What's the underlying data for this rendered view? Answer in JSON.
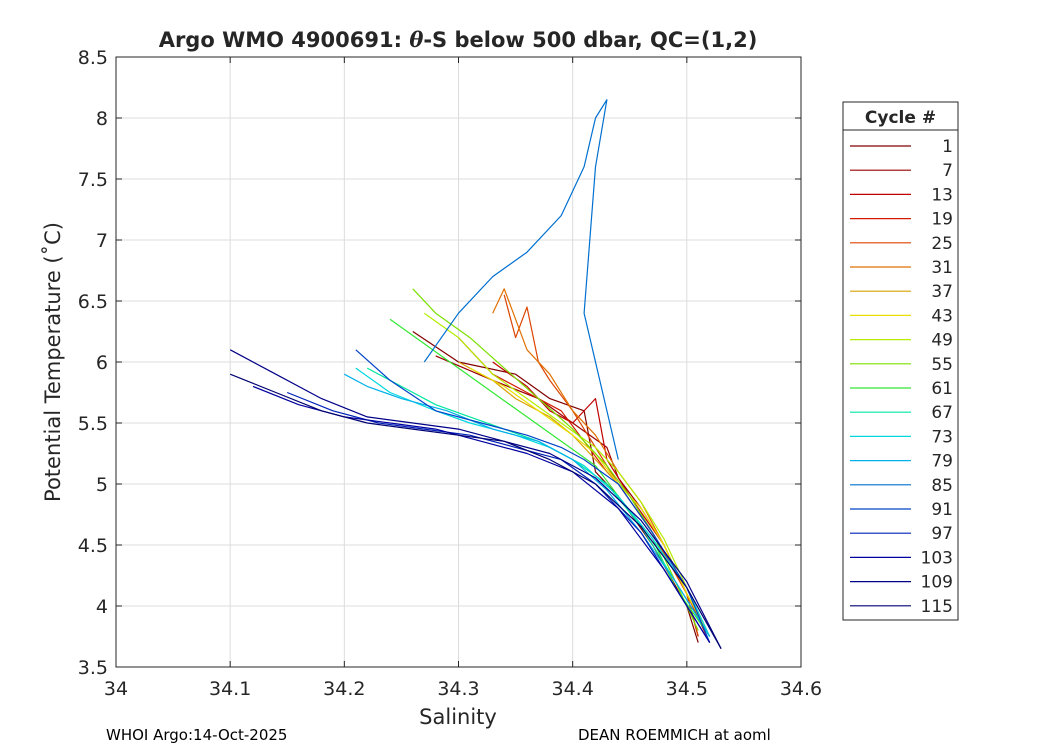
{
  "chart_data": {
    "type": "line",
    "title_prefix": "Argo WMO 4900691: ",
    "title_symbol": "θ",
    "title_suffix": "-S below 500 dbar,  QC=(1,2)",
    "xlabel": "Salinity",
    "ylabel": "Potential Temperature (˚C)",
    "xlim": [
      34.0,
      34.6
    ],
    "ylim": [
      3.5,
      8.5
    ],
    "xticks": [
      "34",
      "34.1",
      "34.2",
      "34.3",
      "34.4",
      "34.5",
      "34.6"
    ],
    "yticks": [
      "3.5",
      "4",
      "4.5",
      "5",
      "5.5",
      "6",
      "6.5",
      "7",
      "7.5",
      "8",
      "8.5"
    ],
    "grid": true,
    "legend": {
      "title": "Cycle #",
      "placement": "outside-right",
      "entries": [
        {
          "label": "1",
          "color": "#800000"
        },
        {
          "label": "7",
          "color": "#9a0000"
        },
        {
          "label": "13",
          "color": "#c00000"
        },
        {
          "label": "19",
          "color": "#d41a00"
        },
        {
          "label": "25",
          "color": "#dd4400"
        },
        {
          "label": "31",
          "color": "#e07000"
        },
        {
          "label": "37",
          "color": "#d9a000"
        },
        {
          "label": "43",
          "color": "#e8e000"
        },
        {
          "label": "49",
          "color": "#b4ee00"
        },
        {
          "label": "55",
          "color": "#7be000"
        },
        {
          "label": "61",
          "color": "#33e833"
        },
        {
          "label": "67",
          "color": "#00e8a0"
        },
        {
          "label": "73",
          "color": "#00d8e0"
        },
        {
          "label": "79",
          "color": "#00b0ea"
        },
        {
          "label": "85",
          "color": "#0070d0"
        },
        {
          "label": "91",
          "color": "#0044c8"
        },
        {
          "label": "97",
          "color": "#0020b8"
        },
        {
          "label": "103",
          "color": "#0000a0"
        },
        {
          "label": "109",
          "color": "#000088"
        },
        {
          "label": "115",
          "color": "#000070"
        }
      ]
    },
    "series": [
      {
        "name": "1",
        "color": "#800000",
        "x": [
          34.26,
          34.3,
          34.35,
          34.38,
          34.41,
          34.42,
          34.44,
          34.47,
          34.5,
          34.51
        ],
        "y": [
          6.25,
          6.0,
          5.9,
          5.7,
          5.6,
          5.1,
          4.9,
          4.5,
          4.0,
          3.7
        ]
      },
      {
        "name": "7",
        "color": "#9a0000",
        "x": [
          34.28,
          34.33,
          34.37,
          34.4,
          34.43,
          34.44,
          34.46,
          34.48,
          34.5,
          34.51
        ],
        "y": [
          6.05,
          5.85,
          5.7,
          5.5,
          5.3,
          5.05,
          4.8,
          4.5,
          4.1,
          3.75
        ]
      },
      {
        "name": "13",
        "color": "#c00000",
        "x": [
          34.33,
          34.36,
          34.38,
          34.4,
          34.42,
          34.43,
          34.45,
          34.48,
          34.5,
          34.52
        ],
        "y": [
          6.0,
          5.8,
          5.6,
          5.5,
          5.7,
          5.2,
          4.9,
          4.5,
          4.1,
          3.7
        ]
      },
      {
        "name": "19",
        "color": "#d41a00",
        "x": [
          34.3,
          34.33,
          34.36,
          34.39,
          34.41,
          34.43,
          34.45,
          34.47,
          34.5,
          34.51
        ],
        "y": [
          6.2,
          5.9,
          5.75,
          5.6,
          5.35,
          5.1,
          4.9,
          4.6,
          4.1,
          3.75
        ]
      },
      {
        "name": "25",
        "color": "#dd4400",
        "x": [
          34.34,
          34.35,
          34.36,
          34.37,
          34.38,
          34.4,
          34.42,
          34.44,
          34.47,
          34.5,
          34.51
        ],
        "y": [
          6.55,
          6.2,
          6.45,
          6.0,
          5.85,
          5.6,
          5.3,
          5.0,
          4.6,
          4.1,
          3.75
        ]
      },
      {
        "name": "31",
        "color": "#e07000",
        "x": [
          34.33,
          34.34,
          34.36,
          34.38,
          34.4,
          34.42,
          34.44,
          34.46,
          34.48,
          34.5,
          34.52
        ],
        "y": [
          6.4,
          6.6,
          6.1,
          5.9,
          5.6,
          5.4,
          5.1,
          4.85,
          4.5,
          4.1,
          3.75
        ]
      },
      {
        "name": "37",
        "color": "#d9a000",
        "x": [
          34.3,
          34.33,
          34.35,
          34.38,
          34.4,
          34.42,
          34.44,
          34.46,
          34.48,
          34.5,
          34.52
        ],
        "y": [
          6.0,
          5.85,
          5.7,
          5.55,
          5.4,
          5.2,
          5.0,
          4.8,
          4.5,
          4.1,
          3.75
        ]
      },
      {
        "name": "43",
        "color": "#e8e000",
        "x": [
          34.31,
          34.34,
          34.37,
          34.4,
          34.42,
          34.44,
          34.46,
          34.48,
          34.5,
          34.52
        ],
        "y": [
          5.95,
          5.8,
          5.6,
          5.4,
          5.25,
          5.0,
          4.8,
          4.5,
          4.1,
          3.75
        ]
      },
      {
        "name": "49",
        "color": "#b4ee00",
        "x": [
          34.27,
          34.3,
          34.33,
          34.36,
          34.39,
          34.42,
          34.44,
          34.46,
          34.48,
          34.5,
          34.52
        ],
        "y": [
          6.4,
          6.2,
          5.9,
          5.7,
          5.5,
          5.3,
          5.1,
          4.85,
          4.55,
          4.15,
          3.75
        ]
      },
      {
        "name": "55",
        "color": "#7be000",
        "x": [
          34.26,
          34.28,
          34.31,
          34.34,
          34.37,
          34.4,
          34.43,
          34.45,
          34.47,
          34.49,
          34.51
        ],
        "y": [
          6.6,
          6.4,
          6.2,
          5.95,
          5.7,
          5.45,
          5.15,
          4.9,
          4.6,
          4.2,
          3.8
        ]
      },
      {
        "name": "61",
        "color": "#33e833",
        "x": [
          34.24,
          34.27,
          34.3,
          34.33,
          34.36,
          34.39,
          34.42,
          34.44,
          34.47,
          34.49,
          34.52
        ],
        "y": [
          6.35,
          6.15,
          5.95,
          5.75,
          5.55,
          5.35,
          5.15,
          4.9,
          4.55,
          4.15,
          3.75
        ]
      },
      {
        "name": "67",
        "color": "#00e8a0",
        "x": [
          34.22,
          34.25,
          34.28,
          34.31,
          34.34,
          34.37,
          34.4,
          34.43,
          34.46,
          34.49,
          34.52
        ],
        "y": [
          5.95,
          5.8,
          5.65,
          5.55,
          5.45,
          5.35,
          5.2,
          5.0,
          4.65,
          4.2,
          3.75
        ]
      },
      {
        "name": "73",
        "color": "#00d8e0",
        "x": [
          34.21,
          34.24,
          34.28,
          34.31,
          34.35,
          34.38,
          34.41,
          34.44,
          34.47,
          34.5,
          34.52
        ],
        "y": [
          5.95,
          5.75,
          5.6,
          5.5,
          5.4,
          5.3,
          5.15,
          4.9,
          4.55,
          4.15,
          3.75
        ]
      },
      {
        "name": "79",
        "color": "#00b0ea",
        "x": [
          34.2,
          34.22,
          34.25,
          34.29,
          34.33,
          34.37,
          34.4,
          34.43,
          34.46,
          34.49,
          34.52
        ],
        "y": [
          5.9,
          5.8,
          5.7,
          5.6,
          5.45,
          5.35,
          5.2,
          4.95,
          4.6,
          4.2,
          3.75
        ]
      },
      {
        "name": "85",
        "color": "#0070d0",
        "x": [
          34.27,
          34.3,
          34.33,
          34.36,
          34.39,
          34.41,
          34.42,
          34.43,
          34.42,
          34.41,
          34.44
        ],
        "y": [
          6.0,
          6.4,
          6.7,
          6.9,
          7.2,
          7.6,
          8.0,
          8.15,
          7.6,
          6.4,
          5.2
        ]
      },
      {
        "name": "91",
        "color": "#0044c8",
        "x": [
          34.21,
          34.24,
          34.28,
          34.32,
          34.36,
          34.39,
          34.41,
          34.44,
          34.47,
          34.5,
          34.52
        ],
        "y": [
          6.1,
          5.85,
          5.6,
          5.5,
          5.4,
          5.3,
          5.2,
          5.0,
          4.6,
          4.15,
          3.7
        ]
      },
      {
        "name": "97",
        "color": "#0020b8",
        "x": [
          34.15,
          34.19,
          34.23,
          34.27,
          34.31,
          34.35,
          34.39,
          34.42,
          34.46,
          34.49,
          34.52
        ],
        "y": [
          5.75,
          5.6,
          5.5,
          5.45,
          5.4,
          5.3,
          5.2,
          5.0,
          4.6,
          4.15,
          3.7
        ]
      },
      {
        "name": "103",
        "color": "#0000a0",
        "x": [
          34.12,
          34.16,
          34.2,
          34.24,
          34.28,
          34.32,
          34.36,
          34.4,
          34.44,
          34.48,
          34.52
        ],
        "y": [
          5.8,
          5.65,
          5.55,
          5.5,
          5.45,
          5.35,
          5.25,
          5.1,
          4.8,
          4.3,
          3.7
        ]
      },
      {
        "name": "109",
        "color": "#000088",
        "x": [
          34.1,
          34.14,
          34.18,
          34.22,
          34.26,
          34.3,
          34.34,
          34.38,
          34.42,
          34.46,
          34.5,
          34.53
        ],
        "y": [
          6.1,
          5.9,
          5.7,
          5.55,
          5.5,
          5.45,
          5.35,
          5.25,
          5.05,
          4.7,
          4.2,
          3.65
        ]
      },
      {
        "name": "115",
        "color": "#000070",
        "x": [
          34.1,
          34.14,
          34.18,
          34.22,
          34.26,
          34.3,
          34.34,
          34.38,
          34.42,
          34.46,
          34.5,
          34.53
        ],
        "y": [
          5.9,
          5.75,
          5.6,
          5.5,
          5.45,
          5.4,
          5.35,
          5.2,
          5.0,
          4.65,
          4.15,
          3.65
        ]
      }
    ]
  },
  "footer": {
    "left": "WHOI Argo:14-Oct-2025",
    "right": "DEAN ROEMMICH at aoml"
  }
}
